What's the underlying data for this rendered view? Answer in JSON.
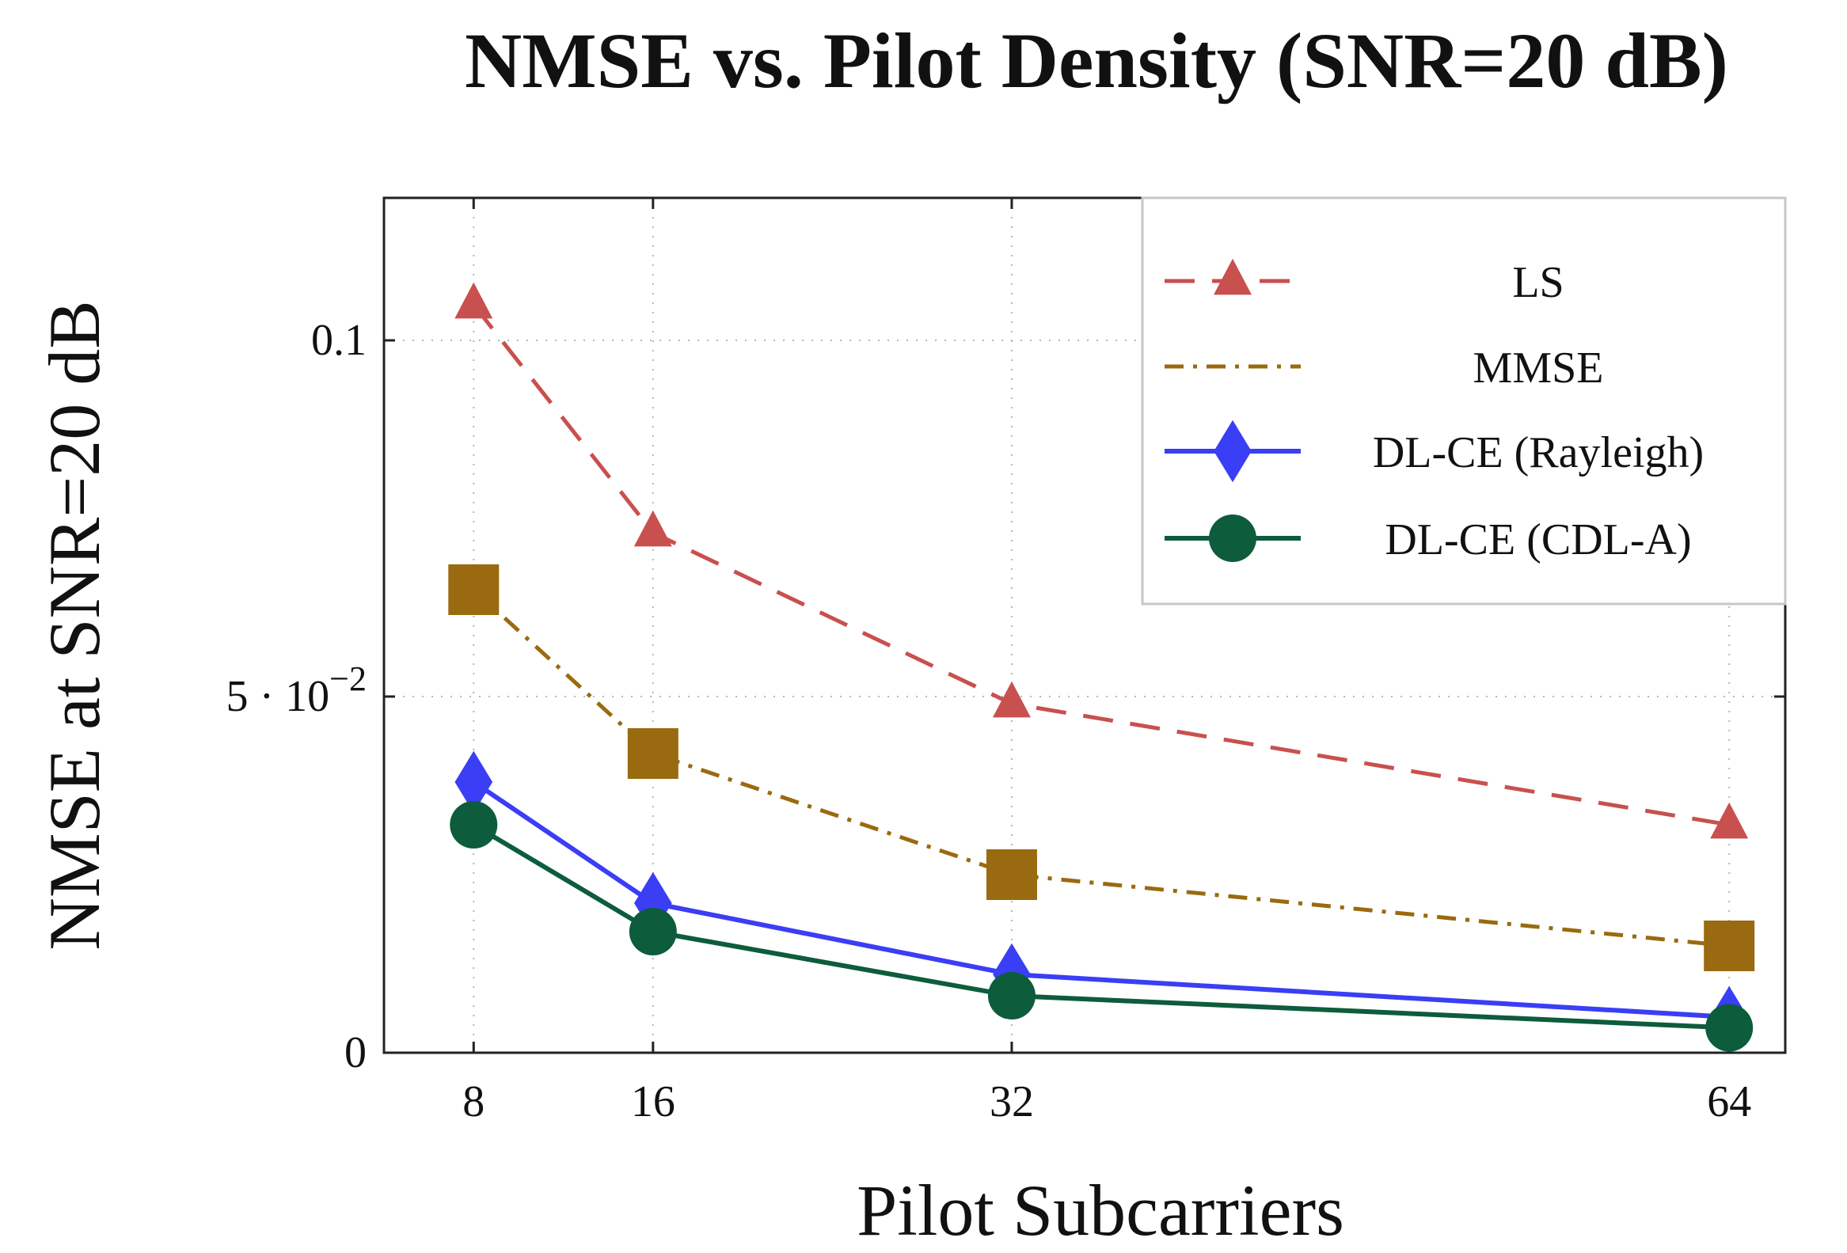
{
  "chart_data": {
    "type": "line",
    "title": "NMSE vs. Pilot Density (SNR=20 dB)",
    "xlabel": "Pilot Subcarriers",
    "ylabel": "NMSE at SNR=20 dB",
    "x": [
      8,
      16,
      32,
      64
    ],
    "x_tick_labels": [
      "8",
      "16",
      "32",
      "64"
    ],
    "y_ticks": [
      {
        "value": 0,
        "label": "0"
      },
      {
        "value": 0.05,
        "label": "5 · 10",
        "exponent": "−2"
      },
      {
        "value": 0.1,
        "label": "0.1"
      }
    ],
    "xlim": [
      4,
      66.5
    ],
    "ylim": [
      0,
      0.12
    ],
    "grid": "dotted vertical and horizontal at ticks",
    "legend_position": "top-right",
    "series": [
      {
        "name": "LS",
        "values": [
          0.105,
          0.073,
          0.049,
          0.032
        ],
        "color": "#c8504f",
        "linestyle": "dashed",
        "marker": "triangle"
      },
      {
        "name": "MMSE",
        "values": [
          0.065,
          0.042,
          0.025,
          0.015
        ],
        "color": "#9a6a10",
        "linestyle": "dash-dot",
        "marker": "square",
        "legend_marker": "none"
      },
      {
        "name": "DL-CE (Rayleigh)",
        "values": [
          0.038,
          0.021,
          0.011,
          0.005
        ],
        "color": "#3a3ef5",
        "linestyle": "solid",
        "marker": "diamond"
      },
      {
        "name": "DL-CE (CDL-A)",
        "values": [
          0.032,
          0.017,
          0.008,
          0.0035
        ],
        "color": "#0d5c3c",
        "linestyle": "solid",
        "marker": "circle"
      }
    ]
  }
}
